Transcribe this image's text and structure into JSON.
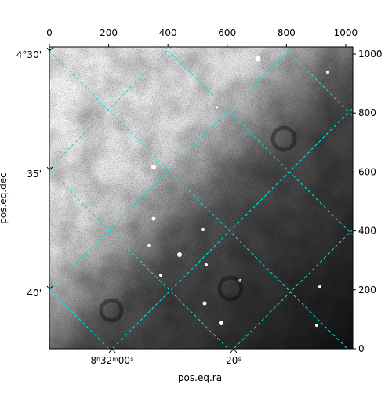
{
  "chart_data": {
    "type": "image",
    "xlabel": "pos.eq.ra",
    "ylabel": "pos.eq.dec",
    "xlim": [
      0,
      1024
    ],
    "xticks": [
      0,
      200,
      400,
      600,
      800,
      1000
    ],
    "ylim": [
      0,
      1024
    ],
    "yticks": [
      0,
      200,
      400,
      600,
      800,
      1000
    ],
    "ra_ticks": [
      {
        "value": 0,
        "label": "8ʰ32ᵐ00ˢ"
      },
      {
        "value": 20,
        "label": "20ˢ"
      }
    ],
    "dec_ticks": [
      {
        "value": 30,
        "label": "4°30'"
      },
      {
        "value": 35,
        "label": "35'"
      },
      {
        "value": 40,
        "label": "40'"
      }
    ],
    "grid": true,
    "grid_color": "#00e5e5"
  }
}
